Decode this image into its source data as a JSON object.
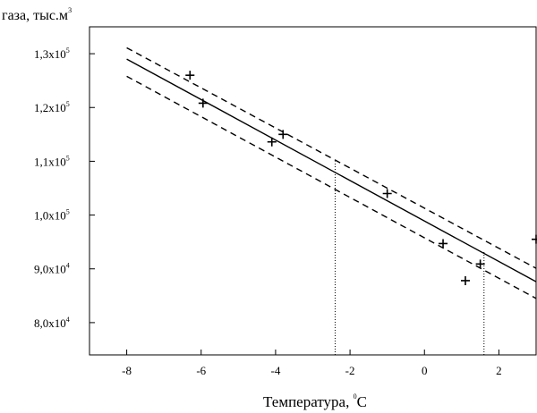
{
  "chart_data": {
    "type": "scatter",
    "title": "",
    "ylabel": {
      "text": "газа, тыс.м",
      "sup": "3"
    },
    "xlabel": {
      "text": "Температура, ",
      "sup": "0",
      "suffix": "C"
    },
    "xlim": [
      -9,
      3
    ],
    "ylim": [
      74000,
      135000
    ],
    "x_ticks": [
      {
        "value": -8,
        "label": "-8"
      },
      {
        "value": -6,
        "label": "-6"
      },
      {
        "value": -4,
        "label": "-4"
      },
      {
        "value": -2,
        "label": "-2"
      },
      {
        "value": 0,
        "label": "0"
      },
      {
        "value": 2,
        "label": "2"
      }
    ],
    "y_ticks": [
      {
        "value": 80000,
        "mantissa": "8,0x10",
        "exp": "4"
      },
      {
        "value": 90000,
        "mantissa": "9,0x10",
        "exp": "4"
      },
      {
        "value": 100000,
        "mantissa": "1,0x10",
        "exp": "5"
      },
      {
        "value": 110000,
        "mantissa": "1,1x10",
        "exp": "5"
      },
      {
        "value": 120000,
        "mantissa": "1,2x10",
        "exp": "5"
      },
      {
        "value": 130000,
        "mantissa": "1,3x10",
        "exp": "5"
      }
    ],
    "points": [
      {
        "x": -6.3,
        "y": 126000
      },
      {
        "x": -5.95,
        "y": 120800
      },
      {
        "x": -4.1,
        "y": 113600
      },
      {
        "x": -3.8,
        "y": 115000
      },
      {
        "x": -1.0,
        "y": 104000
      },
      {
        "x": 0.5,
        "y": 94700
      },
      {
        "x": 1.1,
        "y": 87800
      },
      {
        "x": 1.5,
        "y": 90900
      },
      {
        "x": 3.0,
        "y": 95500
      }
    ],
    "series": [
      {
        "name": "regression",
        "style": "solid",
        "x": [
          -8,
          3
        ],
        "y": [
          129000,
          87600
        ]
      },
      {
        "name": "upper-bound",
        "style": "dashed",
        "x": [
          -8,
          3
        ],
        "y": [
          131100,
          90100
        ]
      },
      {
        "name": "lower-bound",
        "style": "dashed",
        "x": [
          -8,
          3
        ],
        "y": [
          125800,
          84500
        ]
      }
    ],
    "reference_lines": [
      {
        "name": "ref-line-1",
        "style": "dotted",
        "x": -2.4,
        "y_from": 74000,
        "y_to": 110000
      },
      {
        "name": "ref-line-2",
        "style": "dotted",
        "x": 1.6,
        "y_from": 74000,
        "y_to": 93200
      }
    ]
  }
}
